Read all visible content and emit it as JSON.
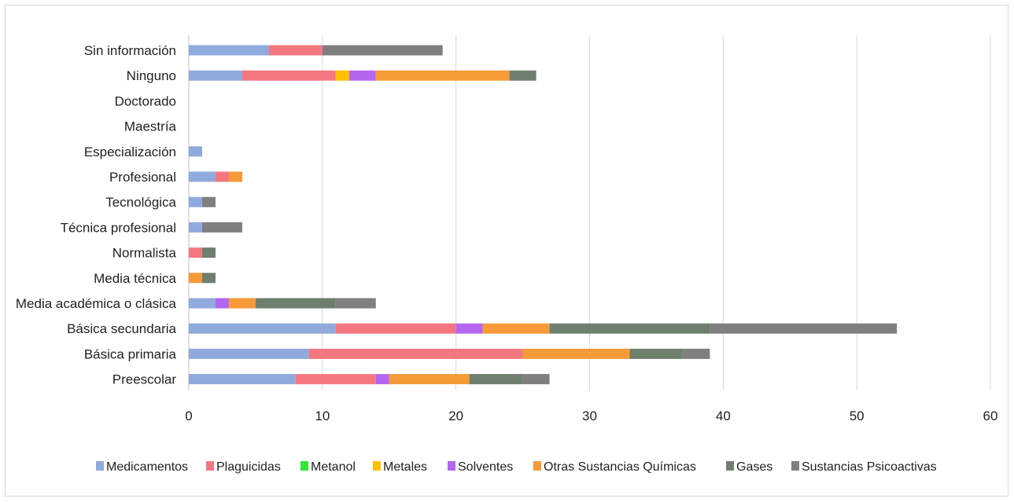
{
  "chart_data": {
    "type": "bar",
    "orientation": "horizontal",
    "stacked": true,
    "categories": [
      "Preescolar",
      "Básica primaria",
      "Básica secundaria",
      "Media académica o clásica",
      "Media técnica",
      "Normalista",
      "Técnica profesional",
      "Tecnológica",
      "Profesional",
      "Especialización",
      "Maestría",
      "Doctorado",
      "Ninguno",
      "Sin información"
    ],
    "series": [
      {
        "name": "Medicamentos",
        "color": "#8faadc",
        "values": [
          8,
          9,
          11,
          2,
          0,
          0,
          1,
          1,
          2,
          1,
          0,
          0,
          4,
          6
        ]
      },
      {
        "name": "Plaguicidas",
        "color": "#f4777f",
        "values": [
          6,
          16,
          9,
          0,
          0,
          1,
          0,
          0,
          1,
          0,
          0,
          0,
          7,
          4
        ]
      },
      {
        "name": "Metanol",
        "color": "#33e633",
        "values": [
          0,
          0,
          0,
          0,
          0,
          0,
          0,
          0,
          0,
          0,
          0,
          0,
          0,
          0
        ]
      },
      {
        "name": "Metales",
        "color": "#ffc000",
        "values": [
          0,
          0,
          0,
          0,
          0,
          0,
          0,
          0,
          0,
          0,
          0,
          0,
          1,
          0
        ]
      },
      {
        "name": "Solventes",
        "color": "#b566f0",
        "values": [
          1,
          0,
          2,
          1,
          0,
          0,
          0,
          0,
          0,
          0,
          0,
          0,
          2,
          0
        ]
      },
      {
        "name": "Otras Sustancias Químicas",
        "color": "#f79a38",
        "values": [
          6,
          8,
          5,
          2,
          1,
          0,
          0,
          0,
          1,
          0,
          0,
          0,
          10,
          0
        ]
      },
      {
        "name": "Gases",
        "color": "#6e7f6e",
        "values": [
          4,
          4,
          12,
          6,
          1,
          1,
          0,
          0,
          0,
          0,
          0,
          0,
          2,
          0
        ]
      },
      {
        "name": "Sustancias Psicoactivas",
        "color": "#7f7f7f",
        "values": [
          2,
          2,
          14,
          3,
          0,
          0,
          3,
          1,
          0,
          0,
          0,
          0,
          0,
          9
        ]
      }
    ],
    "xlim": [
      0,
      60
    ],
    "xticks": [
      0,
      10,
      20,
      30,
      40,
      50,
      60
    ],
    "grid": true,
    "legend_position": "bottom"
  }
}
